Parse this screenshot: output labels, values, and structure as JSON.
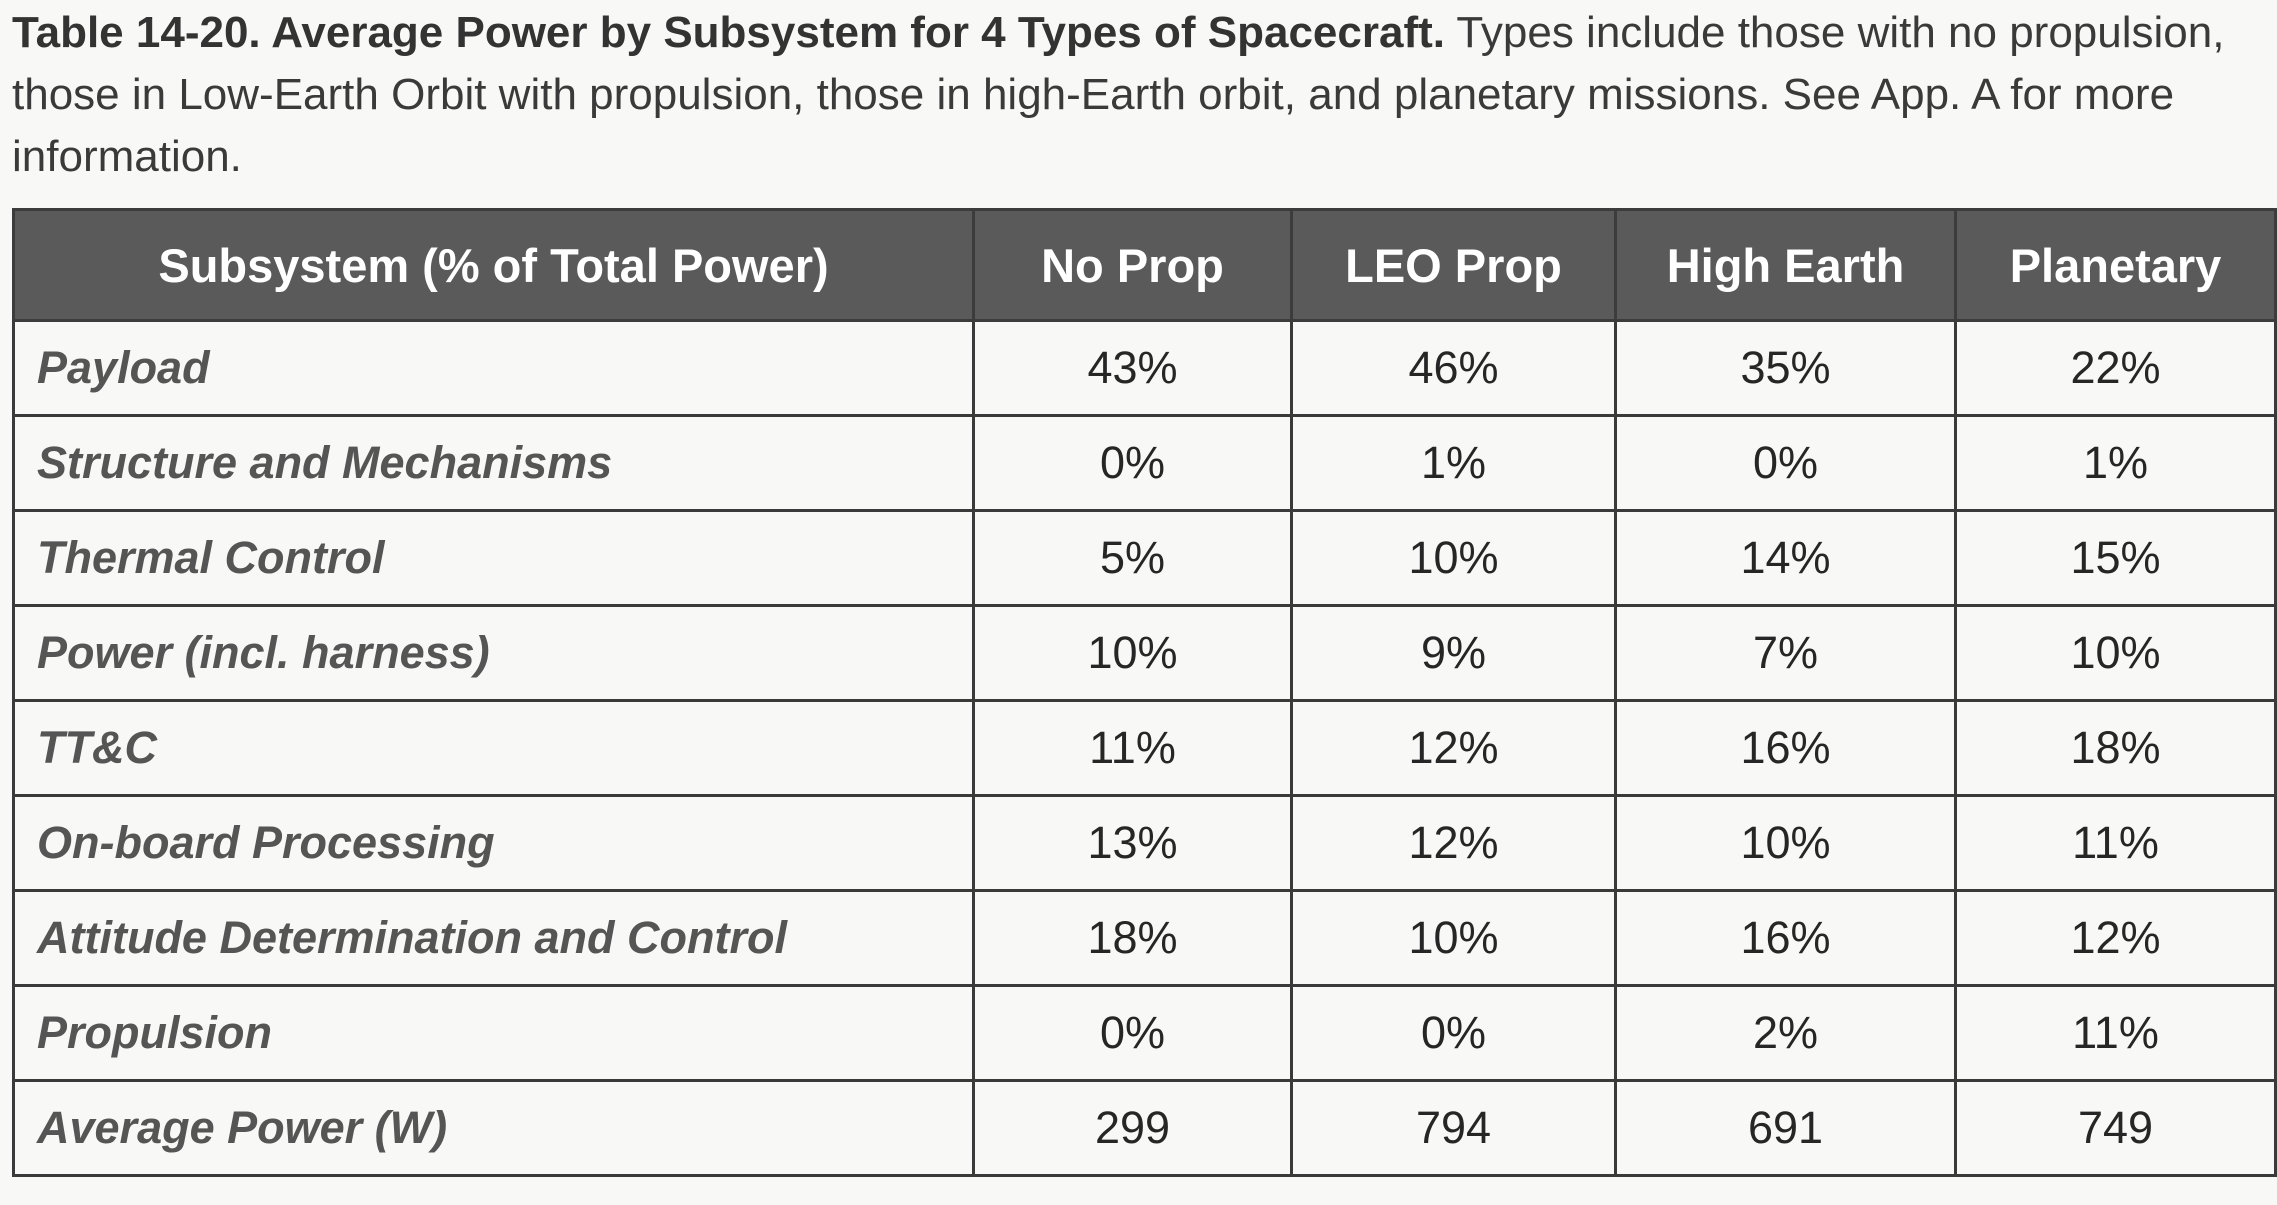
{
  "caption": {
    "title": "Table 14-20. Average Power by Subsystem for 4 Types of Spacecraft.",
    "body": " Types include those with no propulsion, those in Low-Earth Orbit with propulsion, those in high-Earth orbit, and planetary missions. See App. A for more information."
  },
  "table": {
    "headers": [
      "Subsystem (% of Total Power)",
      "No Prop",
      "LEO Prop",
      "High Earth",
      "Planetary"
    ],
    "rows": [
      {
        "label": "Payload",
        "values": [
          "43%",
          "46%",
          "35%",
          "22%"
        ]
      },
      {
        "label": "Structure and Mechanisms",
        "values": [
          "0%",
          "1%",
          "0%",
          "1%"
        ]
      },
      {
        "label": "Thermal Control",
        "values": [
          "5%",
          "10%",
          "14%",
          "15%"
        ]
      },
      {
        "label": "Power (incl. harness)",
        "values": [
          "10%",
          "9%",
          "7%",
          "10%"
        ]
      },
      {
        "label": "TT&C",
        "values": [
          "11%",
          "12%",
          "16%",
          "18%"
        ]
      },
      {
        "label": "On-board Processing",
        "values": [
          "13%",
          "12%",
          "10%",
          "11%"
        ]
      },
      {
        "label": "Attitude Determination and Control",
        "values": [
          "18%",
          "10%",
          "16%",
          "12%"
        ]
      },
      {
        "label": "Propulsion",
        "values": [
          "0%",
          "0%",
          "2%",
          "11%"
        ]
      },
      {
        "label": "Average Power (W)",
        "values": [
          "299",
          "794",
          "691",
          "749"
        ]
      }
    ]
  }
}
